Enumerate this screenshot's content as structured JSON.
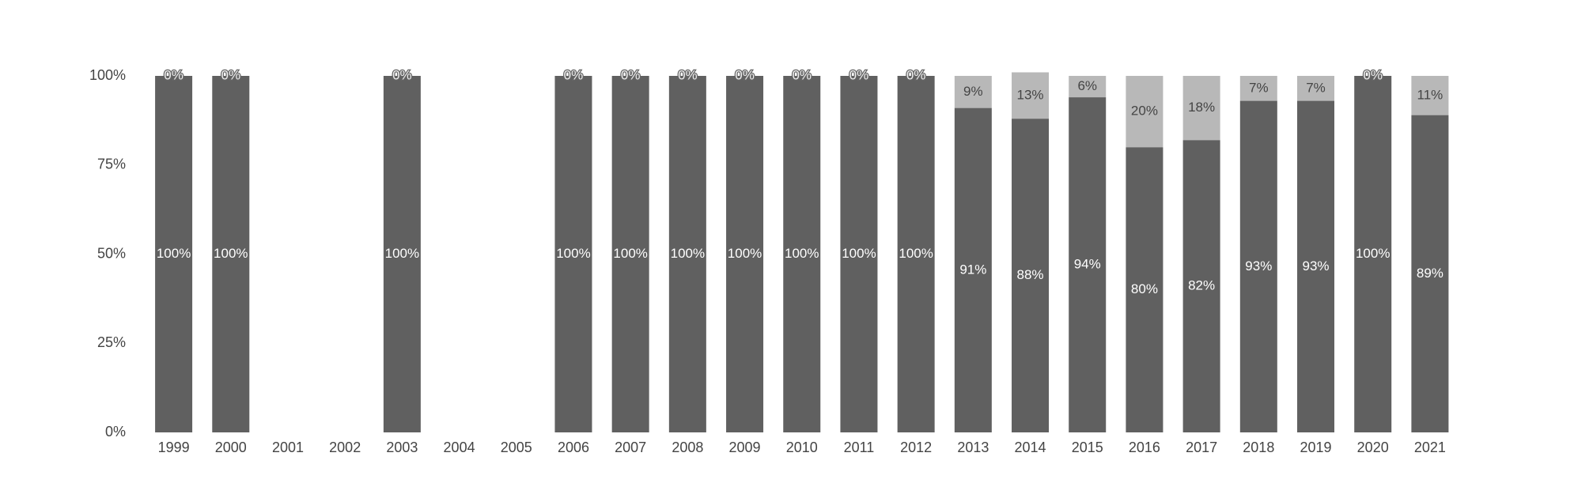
{
  "chart_data": {
    "type": "stacked_bar",
    "categories": [
      "1999",
      "2000",
      "2001",
      "2002",
      "2003",
      "2004",
      "2005",
      "2006",
      "2007",
      "2008",
      "2009",
      "2010",
      "2011",
      "2012",
      "2013",
      "2014",
      "2015",
      "2016",
      "2017",
      "2018",
      "2019",
      "2020",
      "2021"
    ],
    "series": [
      {
        "color": "#606060",
        "values": [
          100,
          100,
          null,
          null,
          100,
          null,
          null,
          100,
          100,
          100,
          100,
          100,
          100,
          100,
          91,
          88,
          94,
          80,
          82,
          93,
          93,
          100,
          89
        ],
        "value_labels": [
          "100%",
          "100%",
          null,
          null,
          "100%",
          null,
          null,
          "100%",
          "100%",
          "100%",
          "100%",
          "100%",
          "100%",
          "100%",
          "91%",
          "88%",
          "94%",
          "80%",
          "82%",
          "93%",
          "93%",
          "100%",
          "89%"
        ]
      },
      {
        "color": "#b8b8b8",
        "values": [
          0,
          0,
          null,
          null,
          0,
          null,
          null,
          0,
          0,
          0,
          0,
          0,
          0,
          0,
          9,
          13,
          6,
          20,
          18,
          7,
          7,
          0,
          11
        ],
        "value_labels": [
          "0%",
          "0%",
          null,
          null,
          "0%",
          null,
          null,
          "0%",
          "0%",
          "0%",
          "0%",
          "0%",
          "0%",
          "0%",
          "9%",
          "13%",
          "6%",
          "20%",
          "18%",
          "7%",
          "7%",
          "0%",
          "11%"
        ]
      }
    ],
    "ylim": [
      0,
      100
    ],
    "yticks": [
      {
        "value": 0,
        "label": "0%"
      },
      {
        "value": 25,
        "label": "25%"
      },
      {
        "value": 50,
        "label": "50%"
      },
      {
        "value": 75,
        "label": "75%"
      },
      {
        "value": 100,
        "label": "100%"
      }
    ]
  }
}
